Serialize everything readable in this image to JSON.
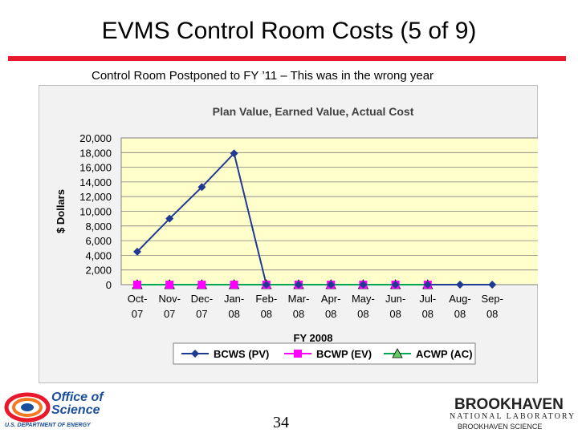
{
  "slide": {
    "title": "EVMS Control Room Costs (5 of 9)",
    "subtitle": "Control Room Postponed to FY ’11 – This was in the wrong year",
    "page_number": "34"
  },
  "logos": {
    "doe_title_line1": "Office of",
    "doe_title_line2": "Science",
    "doe_sub": "U.S. DEPARTMENT OF ENERGY",
    "bnl_name": "BROOKHAVEN",
    "bnl_lab": "NATIONAL LABORATORY",
    "bnl_sci": "BROOKHAVEN SCIENCE"
  },
  "colors": {
    "title_rule": "#e8192c",
    "plot_bg": "#ffffcc",
    "bcws": "#1f3a93",
    "bcwp": "#ff00ff",
    "acwp": "#00a651",
    "acwp_fill": "#66cc66"
  },
  "chart_data": {
    "type": "line",
    "title": "Plan Value, Earned Value, Actual Cost",
    "xlabel": "FY 2008",
    "ylabel": "$ Dollars",
    "ylim": [
      0,
      20000
    ],
    "yticks": [
      "0",
      "2,000",
      "4,000",
      "6,000",
      "8,000",
      "10,000",
      "12,000",
      "14,000",
      "16,000",
      "18,000",
      "20,000"
    ],
    "categories": [
      [
        "Oct-",
        "07"
      ],
      [
        "Nov-",
        "07"
      ],
      [
        "Dec-",
        "07"
      ],
      [
        "Jan-",
        "08"
      ],
      [
        "Feb-",
        "08"
      ],
      [
        "Mar-",
        "08"
      ],
      [
        "Apr-",
        "08"
      ],
      [
        "May-",
        "08"
      ],
      [
        "Jun-",
        "08"
      ],
      [
        "Jul-",
        "08"
      ],
      [
        "Aug-",
        "08"
      ],
      [
        "Sep-",
        "08"
      ]
    ],
    "grid": true,
    "legend_position": "bottom",
    "series": [
      {
        "name": "BCWS (PV)",
        "marker": "diamond",
        "values": [
          4500,
          9000,
          13300,
          17900,
          0,
          0,
          0,
          0,
          0,
          0,
          0,
          0
        ]
      },
      {
        "name": "BCWP (EV)",
        "marker": "square",
        "values": [
          0,
          0,
          0,
          0,
          0,
          0,
          0,
          0,
          0,
          0,
          null,
          null
        ]
      },
      {
        "name": "ACWP (AC)",
        "marker": "triangle",
        "values": [
          0,
          0,
          0,
          0,
          0,
          0,
          0,
          0,
          0,
          0,
          null,
          null
        ]
      }
    ]
  }
}
